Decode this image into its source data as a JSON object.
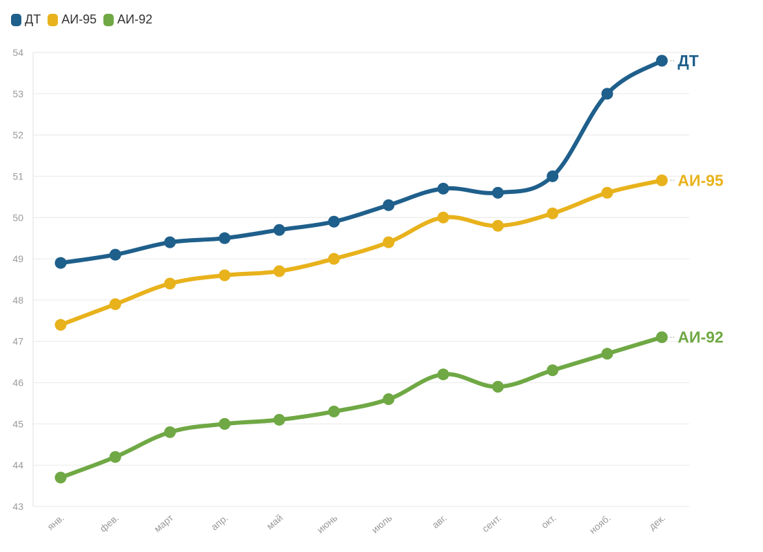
{
  "chart_data": {
    "type": "line",
    "title": "",
    "xlabel": "",
    "ylabel": "",
    "ylim": [
      43,
      54
    ],
    "yticks": [
      43,
      44,
      45,
      46,
      47,
      48,
      49,
      50,
      51,
      52,
      53,
      54
    ],
    "categories": [
      "янв.",
      "фев.",
      "март",
      "апр.",
      "май",
      "июнь",
      "июль",
      "авг.",
      "сент.",
      "окт.",
      "нояб.",
      "дек."
    ],
    "grid": true,
    "legend_position": "top-left",
    "series": [
      {
        "name": "ДТ",
        "end_label": "ДТ",
        "color": "#1f5f8b",
        "values": [
          48.9,
          49.1,
          49.4,
          49.5,
          49.7,
          49.9,
          50.3,
          50.7,
          50.6,
          51.0,
          53.0,
          53.8
        ]
      },
      {
        "name": "АИ-95",
        "end_label": "АИ-95",
        "color": "#e8b21c",
        "values": [
          47.4,
          47.9,
          48.4,
          48.6,
          48.7,
          49.0,
          49.4,
          50.0,
          49.8,
          50.1,
          50.6,
          50.9
        ]
      },
      {
        "name": "АИ-92",
        "end_label": "АИ-92",
        "color": "#6fa844",
        "values": [
          43.7,
          44.2,
          44.8,
          45.0,
          45.1,
          45.3,
          45.6,
          46.2,
          45.9,
          46.3,
          46.7,
          47.1
        ]
      }
    ]
  }
}
